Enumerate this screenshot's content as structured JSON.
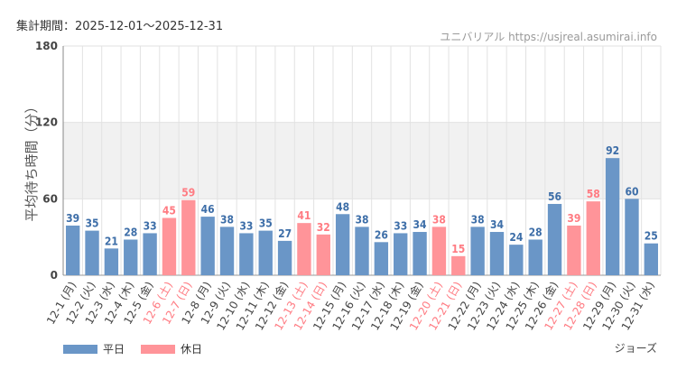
{
  "header": {
    "period": "集計期間：2025-12-01〜2025-12-31",
    "site_name": "ユニバリアル",
    "site_url": "https://usjreal.asumirai.info"
  },
  "footer": {
    "attraction": "ジョーズ"
  },
  "colors": {
    "weekday": "#6a96c7",
    "holiday": "#ff9499",
    "weekday_text": "#3d6ea8",
    "holiday_text": "#ff7b82",
    "band": "#f1f1f1",
    "grid": "#e2e2e2"
  },
  "chart_data": {
    "type": "bar",
    "ylabel": "平均待ち時間（分）",
    "xlabel": "",
    "ylim": [
      0,
      180
    ],
    "yticks": [
      0,
      60,
      120,
      180
    ],
    "shaded_band": [
      60,
      120
    ],
    "legend": [
      {
        "name": "平日",
        "kind": "weekday"
      },
      {
        "name": "休日",
        "kind": "holiday"
      }
    ],
    "categories": [
      "12-1 (月)",
      "12-2 (火)",
      "12-3 (水)",
      "12-4 (木)",
      "12-5 (金)",
      "12-6 (土)",
      "12-7 (日)",
      "12-8 (月)",
      "12-9 (火)",
      "12-10 (水)",
      "12-11 (木)",
      "12-12 (金)",
      "12-13 (土)",
      "12-14 (日)",
      "12-15 (月)",
      "12-16 (火)",
      "12-17 (水)",
      "12-18 (木)",
      "12-19 (金)",
      "12-20 (土)",
      "12-21 (日)",
      "12-22 (月)",
      "12-23 (火)",
      "12-24 (水)",
      "12-25 (木)",
      "12-26 (金)",
      "12-27 (土)",
      "12-28 (日)",
      "12-29 (月)",
      "12-30 (火)",
      "12-31 (水)"
    ],
    "values": [
      39,
      35,
      21,
      28,
      33,
      45,
      59,
      46,
      38,
      33,
      35,
      27,
      41,
      32,
      48,
      38,
      26,
      33,
      34,
      38,
      15,
      38,
      34,
      24,
      28,
      56,
      39,
      58,
      92,
      60,
      25
    ],
    "kinds": [
      "weekday",
      "weekday",
      "weekday",
      "weekday",
      "weekday",
      "holiday",
      "holiday",
      "weekday",
      "weekday",
      "weekday",
      "weekday",
      "weekday",
      "holiday",
      "holiday",
      "weekday",
      "weekday",
      "weekday",
      "weekday",
      "weekday",
      "holiday",
      "holiday",
      "weekday",
      "weekday",
      "weekday",
      "weekday",
      "weekday",
      "holiday",
      "holiday",
      "weekday",
      "weekday",
      "weekday"
    ]
  }
}
